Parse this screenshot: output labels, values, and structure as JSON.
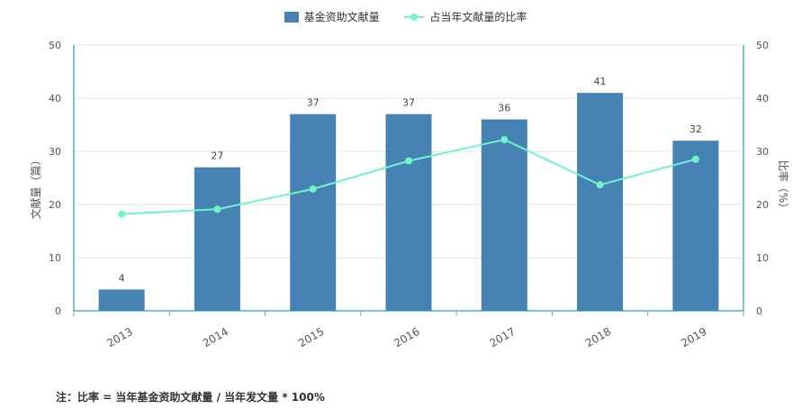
{
  "chart_data": {
    "type": "bar",
    "categories": [
      "2013",
      "2014",
      "2015",
      "2016",
      "2017",
      "2018",
      "2019"
    ],
    "series": [
      {
        "name": "基金资助文献量",
        "type": "bar",
        "axis": "left",
        "values": [
          4,
          27,
          37,
          37,
          36,
          41,
          32
        ]
      },
      {
        "name": "占当年文献量的比率",
        "type": "line",
        "axis": "right",
        "values": [
          18.2,
          19.1,
          22.9,
          28.2,
          32.2,
          23.7,
          28.5
        ]
      }
    ],
    "ylabel": "文献量（篇）",
    "y2label": "比率（%）",
    "ylim": [
      0,
      50
    ],
    "y2lim": [
      0,
      50
    ],
    "yticks": [
      "0",
      "10",
      "20",
      "30",
      "40",
      "50"
    ],
    "y2ticks": [
      "0",
      "10",
      "20",
      "30",
      "40",
      "50"
    ],
    "grid": true,
    "legend_position": "top-center",
    "colors": {
      "bar": "#4682b4",
      "line": "#6ff5c6",
      "axis": "#008b8b"
    }
  },
  "footnote": "注：比率 = 当年基金资助文献量 / 当年发文量 * 100%"
}
